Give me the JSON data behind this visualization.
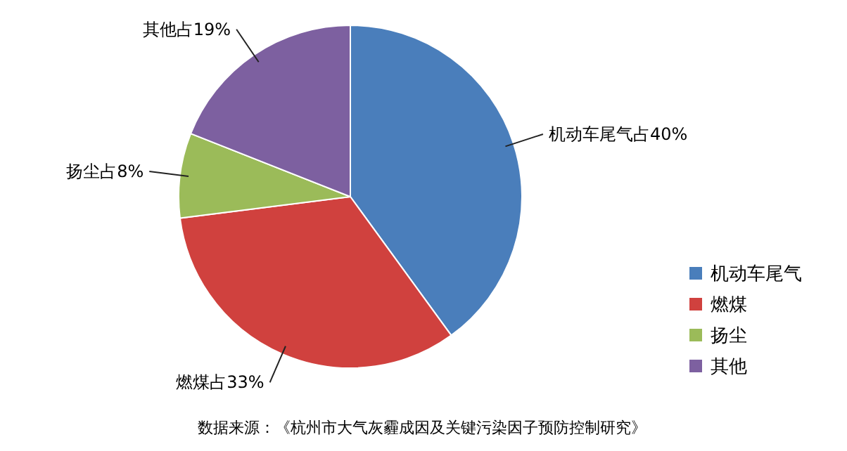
{
  "chart_data": {
    "type": "pie",
    "categories": [
      "机动车尾气",
      "燃煤",
      "扬尘",
      "其他"
    ],
    "values": [
      40,
      33,
      8,
      19
    ],
    "colors": [
      "#4a7ebb",
      "#d0413e",
      "#9bbb59",
      "#7d60a0"
    ],
    "value_labels": [
      "机动车尾气占40%",
      "燃煤占33%",
      "扬尘占8%",
      "其他占19%"
    ],
    "legend": "right",
    "annotations": [
      "数据来源：《杭州市大气灰霾成因及关键污染因子预防控制研究》"
    ]
  }
}
